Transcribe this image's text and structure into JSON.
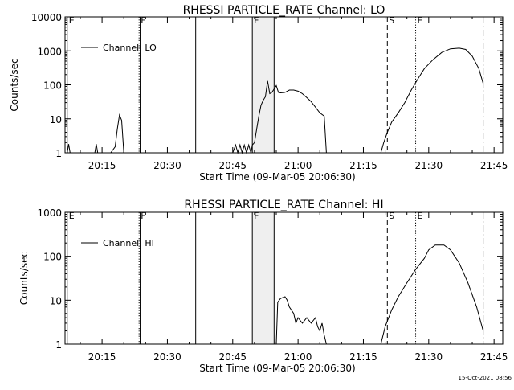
{
  "footer": {
    "timestamp": "15-Oct-2021 08:56"
  },
  "chart_data": [
    {
      "type": "line",
      "title": "RHESSI PARTICLE_RATE Channel: LO",
      "xlabel": "Start Time (09-Mar-05 20:06:30)",
      "ylabel": "Counts/sec",
      "yscale": "log",
      "ylim": [
        1,
        10000
      ],
      "xlim": [
        "20:06:30",
        "21:47:00"
      ],
      "x_ticks": [
        "20:15",
        "20:30",
        "20:45",
        "21:00",
        "21:15",
        "21:30",
        "21:45"
      ],
      "y_ticks": [
        "1",
        "10",
        "100",
        "1000",
        "10000"
      ],
      "legend": {
        "position": "top-left",
        "entries": [
          "Channel: LO"
        ]
      },
      "event_markers": [
        {
          "label": "E",
          "time": "20:07:00",
          "style": "solid"
        },
        {
          "label": "F",
          "time": "20:23:30",
          "style": "dotted"
        },
        {
          "label": "",
          "time": "20:23:45",
          "style": "solid"
        },
        {
          "label": "",
          "time": "20:36:30",
          "style": "solid"
        },
        {
          "label": "F",
          "time": "20:49:30",
          "style": "solid"
        },
        {
          "label": "",
          "time": "20:54:30",
          "style": "solid"
        },
        {
          "label": "S",
          "time": "21:20:30",
          "style": "dashed"
        },
        {
          "label": "E",
          "time": "21:27:00",
          "style": "dotted"
        },
        {
          "label": "",
          "time": "21:42:30",
          "style": "dashdot"
        }
      ],
      "shaded_intervals": [
        [
          "20:49:30",
          "20:54:30"
        ]
      ],
      "series": [
        {
          "segments": [
            [
              [
                "20:07:00",
                1
              ],
              [
                "20:07:20",
                1.8
              ],
              [
                "20:07:40",
                1
              ]
            ],
            [
              [
                "20:13:20",
                1
              ],
              [
                "20:13:40",
                1.8
              ],
              [
                "20:14:00",
                1
              ]
            ],
            [
              [
                "20:17:00",
                1
              ],
              [
                "20:18:00",
                1.5
              ],
              [
                "20:18:30",
                5
              ],
              [
                "20:19:00",
                13
              ],
              [
                "20:19:30",
                9
              ],
              [
                "20:20:00",
                1
              ]
            ],
            [
              [
                "20:45:00",
                1
              ],
              [
                "20:45:40",
                1.7
              ],
              [
                "20:46:10",
                1
              ],
              [
                "20:46:40",
                1.7
              ],
              [
                "20:47:10",
                1
              ],
              [
                "20:47:40",
                1.7
              ],
              [
                "20:48:10",
                1
              ],
              [
                "20:48:40",
                1.7
              ],
              [
                "20:49:10",
                1
              ],
              [
                "20:49:30",
                1.7
              ],
              [
                "20:50:00",
                2
              ],
              [
                "20:50:30",
                5
              ],
              [
                "20:51:00",
                12
              ],
              [
                "20:51:30",
                25
              ],
              [
                "20:52:00",
                35
              ],
              [
                "20:52:30",
                45
              ],
              [
                "20:53:00",
                130
              ],
              [
                "20:53:30",
                55
              ],
              [
                "20:54:00",
                60
              ],
              [
                "20:55:00",
                95
              ],
              [
                "20:55:30",
                60
              ],
              [
                "20:56:00",
                58
              ],
              [
                "20:57:00",
                60
              ],
              [
                "20:58:00",
                70
              ],
              [
                "20:59:00",
                70
              ],
              [
                "21:00:00",
                65
              ],
              [
                "21:01:00",
                55
              ],
              [
                "21:02:00",
                42
              ],
              [
                "21:03:00",
                32
              ],
              [
                "21:04:00",
                22
              ],
              [
                "21:05:00",
                15
              ],
              [
                "21:06:00",
                12
              ],
              [
                "21:06:30",
                1
              ]
            ],
            [
              [
                "21:19:00",
                1
              ],
              [
                "21:19:40",
                2
              ],
              [
                "21:20:30",
                4
              ],
              [
                "21:21:30",
                8
              ],
              [
                "21:23:00",
                15
              ],
              [
                "21:24:30",
                30
              ],
              [
                "21:26:00",
                70
              ],
              [
                "21:27:30",
                150
              ],
              [
                "21:29:00",
                300
              ],
              [
                "21:31:00",
                550
              ],
              [
                "21:33:00",
                900
              ],
              [
                "21:35:00",
                1150
              ],
              [
                "21:37:00",
                1200
              ],
              [
                "21:38:30",
                1100
              ],
              [
                "21:40:00",
                700
              ],
              [
                "21:41:30",
                300
              ],
              [
                "21:42:30",
                110
              ]
            ]
          ]
        }
      ]
    },
    {
      "type": "line",
      "title": "RHESSI PARTICLE_RATE Channel: HI",
      "xlabel": "Start Time (09-Mar-05 20:06:30)",
      "ylabel": "Counts/sec",
      "yscale": "log",
      "ylim": [
        1,
        1000
      ],
      "xlim": [
        "20:06:30",
        "21:47:00"
      ],
      "x_ticks": [
        "20:15",
        "20:30",
        "20:45",
        "21:00",
        "21:15",
        "21:30",
        "21:45"
      ],
      "y_ticks": [
        "1",
        "10",
        "100",
        "1000"
      ],
      "legend": {
        "position": "top-left",
        "entries": [
          "Channel: HI"
        ]
      },
      "event_markers": [
        {
          "label": "E",
          "time": "20:07:00",
          "style": "solid"
        },
        {
          "label": "F",
          "time": "20:23:30",
          "style": "dotted"
        },
        {
          "label": "",
          "time": "20:23:45",
          "style": "solid"
        },
        {
          "label": "",
          "time": "20:36:30",
          "style": "solid"
        },
        {
          "label": "F",
          "time": "20:49:30",
          "style": "solid"
        },
        {
          "label": "",
          "time": "20:54:30",
          "style": "solid"
        },
        {
          "label": "S",
          "time": "21:20:30",
          "style": "dashed"
        },
        {
          "label": "E",
          "time": "21:27:00",
          "style": "dotted"
        },
        {
          "label": "",
          "time": "21:42:30",
          "style": "dashdot"
        }
      ],
      "shaded_intervals": [
        [
          "20:49:30",
          "20:54:30"
        ]
      ],
      "series": [
        {
          "segments": [
            [
              [
                "20:55:00",
                1
              ],
              [
                "20:55:20",
                9
              ],
              [
                "20:56:00",
                11
              ],
              [
                "20:57:00",
                12
              ],
              [
                "20:57:30",
                10
              ],
              [
                "20:58:00",
                7
              ],
              [
                "20:59:00",
                5
              ],
              [
                "20:59:30",
                3
              ],
              [
                "21:00:00",
                4
              ],
              [
                "21:01:00",
                3
              ],
              [
                "21:02:00",
                4
              ],
              [
                "21:03:00",
                3
              ],
              [
                "21:04:00",
                4
              ],
              [
                "21:04:30",
                2.5
              ],
              [
                "21:05:00",
                2
              ],
              [
                "21:05:30",
                3
              ],
              [
                "21:06:00",
                1.6
              ],
              [
                "21:06:30",
                1
              ]
            ],
            [
              [
                "21:19:00",
                1
              ],
              [
                "21:20:00",
                2.5
              ],
              [
                "21:21:30",
                6
              ],
              [
                "21:23:00",
                12
              ],
              [
                "21:25:00",
                25
              ],
              [
                "21:27:00",
                50
              ],
              [
                "21:29:00",
                90
              ],
              [
                "21:30:00",
                140
              ],
              [
                "21:31:30",
                180
              ],
              [
                "21:33:30",
                180
              ],
              [
                "21:35:00",
                140
              ],
              [
                "21:37:00",
                70
              ],
              [
                "21:39:00",
                25
              ],
              [
                "21:41:00",
                7
              ],
              [
                "21:42:30",
                2
              ]
            ]
          ]
        }
      ]
    }
  ]
}
